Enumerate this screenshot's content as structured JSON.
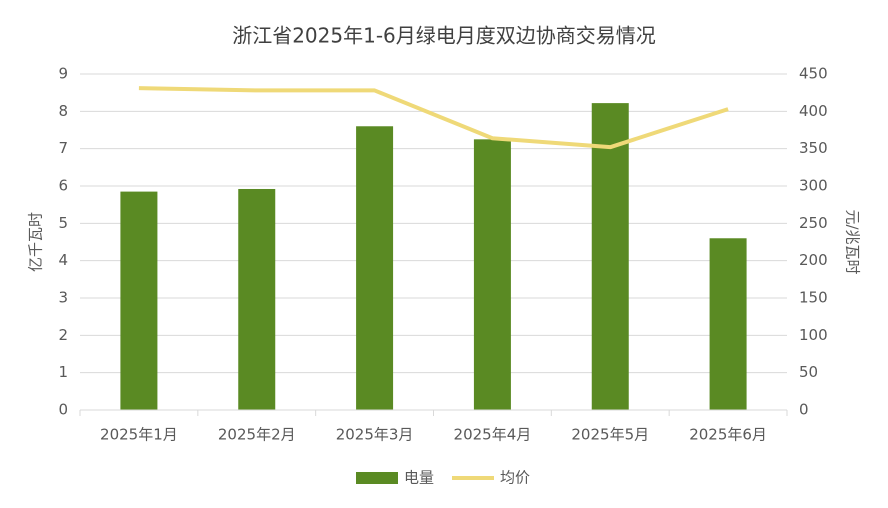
{
  "chart_data": {
    "type": "bar",
    "title": "浙江省2025年1-6月绿电月度双边协商交易情况",
    "categories": [
      "2025年1月",
      "2025年2月",
      "2025年3月",
      "2025年4月",
      "2025年5月",
      "2025年6月"
    ],
    "series": [
      {
        "name": "电量",
        "type": "bar",
        "color": "#5a8a23",
        "values": [
          5.85,
          5.92,
          7.6,
          7.25,
          8.22,
          4.6
        ]
      },
      {
        "name": "均价",
        "type": "line",
        "axis": "y2",
        "color": "#efd978",
        "values": [
          431,
          428,
          428,
          364,
          352,
          403
        ]
      }
    ],
    "y_label": "亿千瓦时",
    "y2_label": "元/兆瓦时",
    "ylim": [
      0,
      9
    ],
    "yticks": [
      0,
      1,
      2,
      3,
      4,
      5,
      6,
      7,
      8,
      9
    ],
    "y2lim": [
      0,
      450
    ],
    "y2ticks": [
      0,
      50,
      100,
      150,
      200,
      250,
      300,
      350,
      400,
      450
    ],
    "grid": true,
    "legend": "bottom"
  }
}
